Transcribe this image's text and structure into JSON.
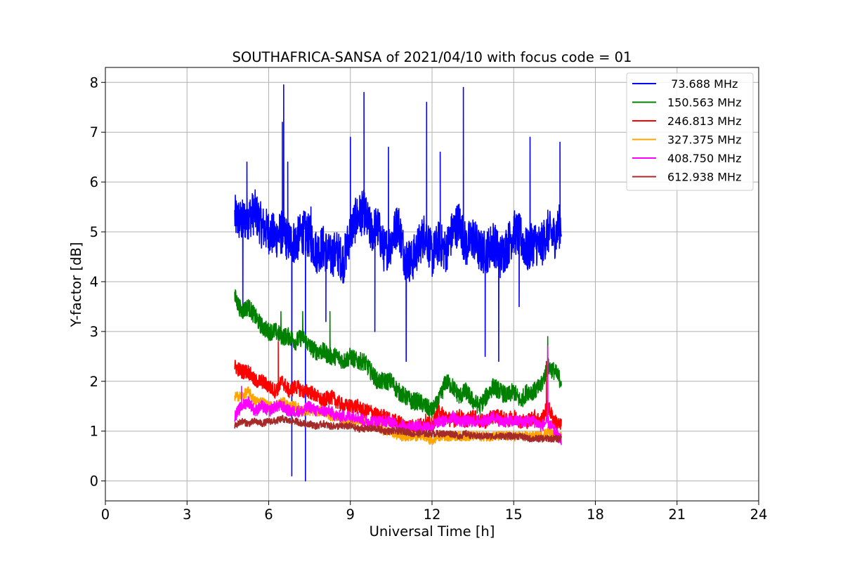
{
  "chart_data": {
    "type": "line",
    "title": "SOUTHAFRICA-SANSA of 2021/04/10 with focus code = 01",
    "xlabel": "Universal Time [h]",
    "ylabel": "Y-factor [dB]",
    "xlim": [
      0,
      24
    ],
    "ylim": [
      -0.4,
      8.3
    ],
    "xticks": [
      0,
      3,
      6,
      9,
      12,
      15,
      18,
      21,
      24
    ],
    "yticks": [
      0,
      1,
      2,
      3,
      4,
      5,
      6,
      7,
      8
    ],
    "xtick_labels": [
      "0",
      "3",
      "6",
      "9",
      "12",
      "15",
      "18",
      "21",
      "24"
    ],
    "ytick_labels": [
      "0",
      "1",
      "2",
      "3",
      "4",
      "5",
      "6",
      "7",
      "8"
    ],
    "grid": true,
    "legend_position": "top-right",
    "series": [
      {
        "name": " 73.688 MHz",
        "color": "#0000ff",
        "x": [
          4.75,
          5.0,
          5.25,
          5.5,
          5.75,
          6.0,
          6.25,
          6.5,
          6.75,
          7.0,
          7.25,
          7.5,
          7.75,
          8.0,
          8.25,
          8.5,
          8.75,
          9.0,
          9.25,
          9.5,
          9.75,
          10.0,
          10.25,
          10.5,
          10.75,
          11.0,
          11.25,
          11.5,
          11.75,
          12.0,
          12.25,
          12.5,
          12.75,
          13.0,
          13.25,
          13.5,
          13.75,
          14.0,
          14.25,
          14.5,
          14.75,
          15.0,
          15.25,
          15.5,
          15.75,
          16.0,
          16.25,
          16.5,
          16.75
        ],
        "y": [
          5.3,
          5.2,
          5.3,
          5.4,
          5.1,
          5.0,
          4.9,
          5.0,
          4.8,
          4.8,
          5.0,
          4.9,
          4.6,
          4.7,
          4.5,
          4.6,
          4.4,
          5.0,
          5.3,
          5.4,
          5.0,
          5.1,
          4.6,
          4.8,
          5.2,
          4.5,
          4.4,
          4.7,
          5.0,
          4.5,
          4.8,
          4.6,
          5.0,
          5.2,
          4.7,
          4.9,
          4.6,
          4.6,
          4.8,
          4.5,
          4.7,
          5.0,
          4.9,
          4.6,
          4.8,
          4.7,
          5.0,
          4.9,
          5.2
        ],
        "peaks": [
          [
            5.2,
            6.4
          ],
          [
            5.05,
            3.4
          ],
          [
            6.55,
            7.95
          ],
          [
            6.5,
            7.2
          ],
          [
            6.7,
            6.4
          ],
          [
            6.85,
            0.1
          ],
          [
            7.35,
            0.0
          ],
          [
            7.55,
            5.5
          ],
          [
            8.1,
            3.2
          ],
          [
            9.0,
            6.9
          ],
          [
            9.5,
            7.8
          ],
          [
            9.9,
            3.0
          ],
          [
            10.4,
            6.7
          ],
          [
            11.05,
            2.4
          ],
          [
            11.8,
            7.6
          ],
          [
            12.3,
            6.6
          ],
          [
            13.15,
            7.9
          ],
          [
            13.95,
            2.5
          ],
          [
            14.45,
            2.4
          ],
          [
            15.2,
            3.5
          ],
          [
            15.6,
            6.9
          ],
          [
            16.7,
            6.8
          ]
        ]
      },
      {
        "name": "150.563 MHz",
        "color": "#008000",
        "x": [
          4.75,
          5.0,
          5.25,
          5.5,
          5.75,
          6.0,
          6.25,
          6.5,
          6.75,
          7.0,
          7.25,
          7.5,
          7.75,
          8.0,
          8.25,
          8.5,
          8.75,
          9.0,
          9.25,
          9.5,
          9.75,
          10.0,
          10.25,
          10.5,
          10.75,
          11.0,
          11.25,
          11.5,
          11.75,
          12.0,
          12.25,
          12.5,
          12.75,
          13.0,
          13.25,
          13.5,
          13.75,
          14.0,
          14.25,
          14.5,
          14.75,
          15.0,
          15.25,
          15.5,
          15.75,
          16.0,
          16.25,
          16.5,
          16.75
        ],
        "y": [
          3.7,
          3.4,
          3.5,
          3.3,
          3.1,
          3.0,
          3.0,
          2.9,
          2.9,
          2.8,
          2.9,
          2.7,
          2.6,
          2.6,
          2.5,
          2.5,
          2.4,
          2.5,
          2.4,
          2.4,
          2.2,
          2.0,
          2.0,
          2.0,
          1.8,
          1.7,
          1.6,
          1.6,
          1.5,
          1.4,
          1.6,
          2.0,
          1.9,
          1.7,
          1.8,
          1.6,
          1.5,
          1.7,
          1.9,
          1.8,
          1.7,
          1.8,
          1.6,
          1.8,
          1.8,
          1.9,
          2.3,
          2.2,
          2.0
        ],
        "peaks": [
          [
            6.45,
            3.4
          ],
          [
            7.25,
            3.4
          ],
          [
            8.25,
            3.4
          ],
          [
            16.25,
            2.9
          ]
        ]
      },
      {
        "name": "246.813 MHz",
        "color": "#ff0000",
        "x": [
          4.75,
          5.0,
          5.25,
          5.5,
          5.75,
          6.0,
          6.25,
          6.5,
          6.75,
          7.0,
          7.25,
          7.5,
          7.75,
          8.0,
          8.25,
          8.5,
          8.75,
          9.0,
          9.25,
          9.5,
          9.75,
          10.0,
          10.25,
          10.5,
          10.75,
          11.0,
          11.25,
          11.5,
          11.75,
          12.0,
          12.25,
          12.5,
          12.75,
          13.0,
          13.25,
          13.5,
          13.75,
          14.0,
          14.25,
          14.5,
          14.75,
          15.0,
          15.25,
          15.5,
          15.75,
          16.0,
          16.25,
          16.5,
          16.75
        ],
        "y": [
          2.3,
          2.2,
          2.2,
          2.0,
          2.0,
          1.9,
          1.8,
          2.0,
          1.8,
          1.9,
          1.8,
          1.8,
          1.7,
          1.6,
          1.7,
          1.6,
          1.5,
          1.5,
          1.5,
          1.4,
          1.4,
          1.3,
          1.3,
          1.2,
          1.2,
          1.1,
          1.1,
          1.1,
          1.2,
          1.1,
          1.4,
          1.3,
          1.2,
          1.3,
          1.2,
          1.3,
          1.2,
          1.2,
          1.3,
          1.3,
          1.2,
          1.3,
          1.2,
          1.2,
          1.3,
          1.2,
          1.5,
          1.2,
          1.1
        ],
        "peaks": [
          [
            6.35,
            2.8
          ],
          [
            16.2,
            2.4
          ]
        ]
      },
      {
        "name": "327.375 MHz",
        "color": "#ffa500",
        "x": [
          4.75,
          5.0,
          5.25,
          5.5,
          5.75,
          6.0,
          6.25,
          6.5,
          6.75,
          7.0,
          7.25,
          7.5,
          7.75,
          8.0,
          8.25,
          8.5,
          8.75,
          9.0,
          9.25,
          9.5,
          9.75,
          10.0,
          10.25,
          10.5,
          10.75,
          11.0,
          11.25,
          11.5,
          11.75,
          12.0,
          12.25,
          12.5,
          12.75,
          13.0,
          13.25,
          13.5,
          13.75,
          14.0,
          14.25,
          14.5,
          14.75,
          15.0,
          15.25,
          15.5,
          15.75,
          16.0,
          16.25,
          16.5,
          16.75
        ],
        "y": [
          1.7,
          1.7,
          1.8,
          1.6,
          1.6,
          1.5,
          1.5,
          1.6,
          1.5,
          1.5,
          1.4,
          1.4,
          1.4,
          1.4,
          1.3,
          1.3,
          1.2,
          1.2,
          1.2,
          1.2,
          1.1,
          1.1,
          1.0,
          1.0,
          0.9,
          0.9,
          0.9,
          0.9,
          0.9,
          0.8,
          0.9,
          0.9,
          0.9,
          0.9,
          0.9,
          0.9,
          0.9,
          0.9,
          0.9,
          0.9,
          0.9,
          0.9,
          0.9,
          0.9,
          0.9,
          0.9,
          1.0,
          0.9,
          0.9
        ],
        "peaks": []
      },
      {
        "name": "408.750 MHz",
        "color": "#ff00ff",
        "x": [
          4.75,
          5.0,
          5.25,
          5.5,
          5.75,
          6.0,
          6.25,
          6.5,
          6.75,
          7.0,
          7.25,
          7.5,
          7.75,
          8.0,
          8.25,
          8.5,
          8.75,
          9.0,
          9.25,
          9.5,
          9.75,
          10.0,
          10.25,
          10.5,
          10.75,
          11.0,
          11.25,
          11.5,
          11.75,
          12.0,
          12.25,
          12.5,
          12.75,
          13.0,
          13.25,
          13.5,
          13.75,
          14.0,
          14.25,
          14.5,
          14.75,
          15.0,
          15.25,
          15.5,
          15.75,
          16.0,
          16.25,
          16.5,
          16.75
        ],
        "y": [
          1.3,
          1.5,
          1.6,
          1.4,
          1.5,
          1.4,
          1.5,
          1.5,
          1.4,
          1.4,
          1.4,
          1.5,
          1.4,
          1.4,
          1.4,
          1.3,
          1.3,
          1.3,
          1.3,
          1.2,
          1.2,
          1.2,
          1.2,
          1.2,
          1.1,
          1.1,
          1.1,
          1.1,
          1.1,
          1.1,
          1.2,
          1.2,
          1.3,
          1.2,
          1.2,
          1.2,
          1.2,
          1.2,
          1.3,
          1.2,
          1.2,
          1.2,
          1.2,
          1.2,
          1.2,
          1.1,
          1.2,
          1.0,
          0.8
        ],
        "peaks": [
          [
            5.0,
            1.9
          ],
          [
            16.25,
            2.7
          ]
        ]
      },
      {
        "name": "612.938 MHz",
        "color": "#a52a2a",
        "x": [
          4.75,
          5.0,
          5.25,
          5.5,
          5.75,
          6.0,
          6.25,
          6.5,
          6.75,
          7.0,
          7.25,
          7.5,
          7.75,
          8.0,
          8.25,
          8.5,
          8.75,
          9.0,
          9.25,
          9.5,
          9.75,
          10.0,
          10.25,
          10.5,
          10.75,
          11.0,
          11.25,
          11.5,
          11.75,
          12.0,
          12.25,
          12.5,
          12.75,
          13.0,
          13.25,
          13.5,
          13.75,
          14.0,
          14.25,
          14.5,
          14.75,
          15.0,
          15.25,
          15.5,
          15.75,
          16.0,
          16.25,
          16.5,
          16.75
        ],
        "y": [
          1.1,
          1.2,
          1.15,
          1.2,
          1.15,
          1.2,
          1.2,
          1.25,
          1.2,
          1.2,
          1.15,
          1.15,
          1.1,
          1.15,
          1.1,
          1.1,
          1.1,
          1.1,
          1.05,
          1.05,
          1.05,
          1.05,
          1.0,
          1.0,
          1.0,
          1.0,
          0.95,
          0.95,
          0.95,
          0.95,
          0.95,
          0.95,
          0.95,
          0.9,
          0.95,
          0.9,
          0.9,
          0.9,
          0.9,
          0.9,
          0.9,
          0.9,
          0.9,
          0.85,
          0.85,
          0.85,
          0.85,
          0.85,
          0.85
        ],
        "peaks": []
      }
    ]
  }
}
